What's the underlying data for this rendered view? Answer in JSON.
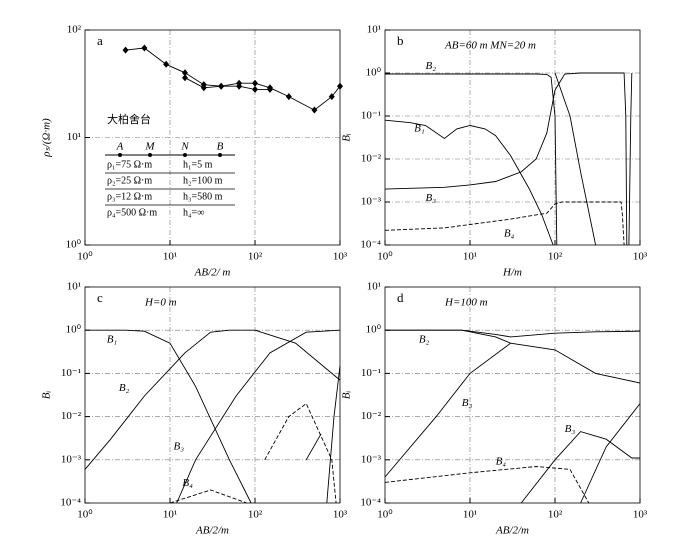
{
  "chart_data": [
    {
      "type": "scatter-line",
      "label": "a",
      "xlabel": "AB/2/ m",
      "ylabel": "ρₛ/(Ω·m)",
      "log_x": true,
      "log_y": true,
      "grid": true,
      "xlim": [
        1,
        1000
      ],
      "ylim": [
        1,
        100
      ],
      "xticks": [
        {
          "value": 1,
          "label": "10⁰"
        },
        {
          "value": 10,
          "label": "10¹"
        },
        {
          "value": 100,
          "label": "10²"
        },
        {
          "value": 1000,
          "label": "10³"
        }
      ],
      "yticks": [
        {
          "value": 1,
          "label": "10⁰"
        },
        {
          "value": 10,
          "label": "10¹"
        },
        {
          "value": 100,
          "label": "10²"
        }
      ],
      "location": "大柏舍台",
      "electrodes": [
        "A",
        "M",
        "N",
        "B"
      ],
      "layers": [
        [
          "ρ₁=75 Ω·m",
          "h₁=5 m"
        ],
        [
          "ρ₂=25 Ω·m",
          "h₂=100 m"
        ],
        [
          "ρ₃=12 Ω·m",
          "h₃=580 m"
        ],
        [
          "ρ₄=500 Ω·m",
          "h₄=∞"
        ]
      ],
      "series": [
        {
          "color": "#000000",
          "x": [
            3,
            5,
            9,
            15,
            25,
            40,
            65,
            100,
            150,
            250,
            500,
            800,
            1000
          ],
          "values": [
            65,
            68,
            48,
            40,
            31,
            30,
            32,
            32,
            29,
            24,
            18,
            24,
            30
          ]
        },
        {
          "color": "#000000",
          "x": [
            15,
            25,
            40,
            65,
            100,
            150
          ],
          "values": [
            36,
            29,
            30,
            30,
            28,
            28
          ]
        }
      ]
    },
    {
      "type": "line",
      "label": "b",
      "xlabel": "H/m",
      "ylabel": "Bᵢ",
      "annotation": "AB=60 m   MN=20 m",
      "log_x": true,
      "log_y": true,
      "grid": true,
      "xlim": [
        1,
        1000
      ],
      "ylim": [
        0.0001,
        10
      ],
      "xticks": [
        {
          "value": 1,
          "label": "10⁰"
        },
        {
          "value": 10,
          "label": "10¹"
        },
        {
          "value": 100,
          "label": "10²"
        },
        {
          "value": 1000,
          "label": "10³"
        }
      ],
      "yticks": [
        {
          "value": 0.0001,
          "label": "10⁻⁴"
        },
        {
          "value": 0.001,
          "label": "10⁻³"
        },
        {
          "value": 0.01,
          "label": "10⁻²"
        },
        {
          "value": 0.1,
          "label": "10⁻¹"
        },
        {
          "value": 1,
          "label": "10⁰"
        },
        {
          "value": 10,
          "label": "10¹"
        }
      ],
      "series": [
        {
          "name": "B₁",
          "color": "#000000",
          "x": [
            1,
            2,
            3,
            5,
            7,
            10,
            15,
            20,
            30,
            50,
            70,
            95
          ],
          "values": [
            0.08,
            0.07,
            0.06,
            0.03,
            0.05,
            0.06,
            0.05,
            0.035,
            0.012,
            0.002,
            0.0005,
            0.0001
          ]
        },
        {
          "name": "B₂",
          "color": "#000000",
          "x": [
            1,
            10,
            30,
            60,
            80,
            90,
            100,
            105
          ],
          "values": [
            0.95,
            0.95,
            0.95,
            0.95,
            0.93,
            0.8,
            0.1,
            0.0001
          ]
        },
        {
          "name": "B₃",
          "color": "#000000",
          "x": [
            1,
            5,
            10,
            20,
            40,
            60,
            80,
            100,
            130,
            200,
            400,
            650,
            680,
            700
          ],
          "values": [
            0.002,
            0.0022,
            0.0025,
            0.003,
            0.005,
            0.01,
            0.04,
            0.4,
            0.95,
            1,
            1,
            1,
            0.1,
            0.0001
          ]
        },
        {
          "name": "B₄",
          "color": "#000000",
          "dashed": true,
          "x": [
            1,
            5,
            10,
            30,
            60,
            80,
            100,
            120,
            300,
            600,
            620,
            650
          ],
          "values": [
            0.00022,
            0.00025,
            0.0003,
            0.0004,
            0.0005,
            0.00055,
            0.0009,
            0.001,
            0.001,
            0.001,
            0.0005,
            0.0001
          ]
        },
        {
          "color": "#000000",
          "x": [
            100,
            150,
            200,
            300
          ],
          "values": [
            1,
            0.1,
            0.005,
            0.0001
          ]
        },
        {
          "color": "#000000",
          "x": [
            740,
            780,
            800
          ],
          "values": [
            0.0001,
            0.1,
            1
          ]
        }
      ]
    },
    {
      "type": "line",
      "label": "c",
      "xlabel": "AB/2/m",
      "ylabel": "Bᵢ",
      "annotation": "H=0 m",
      "log_x": true,
      "log_y": true,
      "grid": true,
      "xlim": [
        1,
        1000
      ],
      "ylim": [
        0.0001,
        10
      ],
      "xticks": [
        {
          "value": 1,
          "label": "10⁰"
        },
        {
          "value": 10,
          "label": "10¹"
        },
        {
          "value": 100,
          "label": "10²"
        },
        {
          "value": 1000,
          "label": "10³"
        }
      ],
      "yticks": [
        {
          "value": 0.0001,
          "label": "10⁻⁴"
        },
        {
          "value": 0.001,
          "label": "10⁻³"
        },
        {
          "value": 0.01,
          "label": "10⁻²"
        },
        {
          "value": 0.1,
          "label": "10⁻¹"
        },
        {
          "value": 1,
          "label": "10⁰"
        },
        {
          "value": 10,
          "label": "10¹"
        }
      ],
      "series": [
        {
          "name": "B₁",
          "color": "#000000",
          "x": [
            1,
            3,
            5,
            10,
            20,
            50,
            90,
            250,
            400,
            600
          ],
          "values": [
            1,
            1,
            0.95,
            0.5,
            0.05,
            0.001,
            0.0001,
            null,
            0.001,
            0.004
          ]
        },
        {
          "name": "B₂",
          "color": "#000000",
          "x": [
            1,
            2,
            5,
            15,
            30,
            50,
            100,
            300,
            1000
          ],
          "values": [
            0.0006,
            0.003,
            0.03,
            0.3,
            0.9,
            1,
            1,
            0.5,
            0.07
          ]
        },
        {
          "name": "B₃",
          "color": "#000000",
          "x": [
            12,
            20,
            60,
            150,
            400,
            1000
          ],
          "values": [
            0.0001,
            0.001,
            0.03,
            0.3,
            0.9,
            1
          ]
        },
        {
          "name": "B₄",
          "color": "#000000",
          "dashed": true,
          "x": [
            10,
            30,
            80,
            110,
            130,
            250,
            400,
            800,
            900
          ],
          "values": [
            0.0001,
            0.0002,
            0.0001,
            null,
            0.001,
            0.01,
            0.02,
            0.001,
            0.0001
          ]
        },
        {
          "color": "#000000",
          "x": [
            700,
            850,
            1000
          ],
          "values": [
            0.0001,
            0.01,
            0.15
          ]
        }
      ]
    },
    {
      "type": "line",
      "label": "d",
      "xlabel": "AB/2/m",
      "ylabel": "Bᵢ",
      "annotation": "H=100 m",
      "log_x": true,
      "log_y": true,
      "grid": true,
      "xlim": [
        1,
        1000
      ],
      "ylim": [
        0.0001,
        10
      ],
      "xticks": [
        {
          "value": 1,
          "label": "10⁰"
        },
        {
          "value": 10,
          "label": "10¹"
        },
        {
          "value": 100,
          "label": "10²"
        },
        {
          "value": 1000,
          "label": "10³"
        }
      ],
      "yticks": [
        {
          "value": 0.0001,
          "label": "10⁻⁴"
        },
        {
          "value": 0.001,
          "label": "10⁻³"
        },
        {
          "value": 0.01,
          "label": "10⁻²"
        },
        {
          "value": 0.1,
          "label": "10⁻¹"
        },
        {
          "value": 1,
          "label": "10⁰"
        },
        {
          "value": 10,
          "label": "10¹"
        }
      ],
      "series": [
        {
          "name": "B₂",
          "color": "#000000",
          "x": [
            1,
            8,
            20,
            30,
            100,
            300,
            1000
          ],
          "values": [
            1,
            1,
            0.8,
            0.7,
            0.85,
            0.92,
            0.95
          ]
        },
        {
          "color": "#000000",
          "x": [
            1,
            8,
            20,
            30,
            100,
            300,
            1000
          ],
          "values": [
            1,
            1,
            0.7,
            0.5,
            0.35,
            0.1,
            0.06
          ]
        },
        {
          "name": "B₃",
          "color": "#000000",
          "x": [
            1,
            4,
            10,
            30
          ],
          "values": [
            0.0004,
            0.01,
            0.1,
            0.5
          ]
        },
        {
          "name": "B₃",
          "color": "#000000",
          "x": [
            40,
            100,
            200,
            400,
            800,
            1000
          ],
          "values": [
            0.0001,
            0.001,
            0.0045,
            0.003,
            0.0011,
            0.0011
          ]
        },
        {
          "name": "B₄",
          "color": "#000000",
          "dashed": true,
          "x": [
            1,
            10,
            60,
            150,
            250
          ],
          "values": [
            0.0003,
            0.0005,
            0.0007,
            0.0006,
            0.0001
          ]
        },
        {
          "color": "#000000",
          "x": [
            200,
            400,
            1000
          ],
          "values": [
            0.0001,
            0.002,
            0.02
          ]
        }
      ]
    }
  ]
}
